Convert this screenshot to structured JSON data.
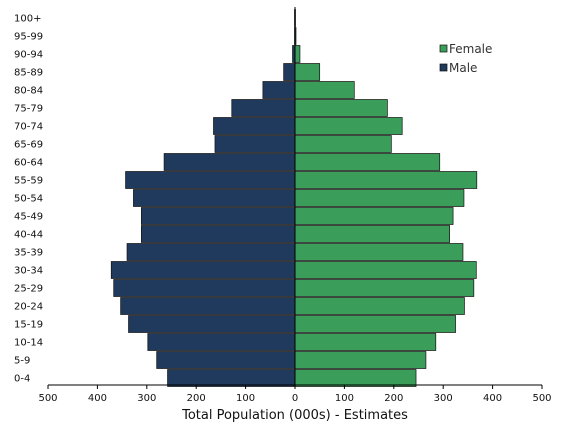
{
  "chart_data": {
    "type": "bar",
    "orientation": "horizontal",
    "layout": "population-pyramid",
    "xlabel": "Total Population (000s) - Estimates",
    "ylabel": "",
    "xlim": [
      -500,
      500
    ],
    "xticks": [
      -500,
      -400,
      -300,
      -200,
      -100,
      0,
      100,
      200,
      300,
      400,
      500
    ],
    "xtick_labels": [
      "500",
      "400",
      "300",
      "200",
      "100",
      "0",
      "100",
      "200",
      "300",
      "400",
      "500"
    ],
    "grid": false,
    "legend_position": "top-right",
    "categories": [
      "0-4",
      "5-9",
      "10-14",
      "15-19",
      "20-24",
      "25-29",
      "30-34",
      "35-39",
      "40-44",
      "45-49",
      "50-54",
      "55-59",
      "60-64",
      "65-69",
      "70-74",
      "75-79",
      "80-84",
      "85-89",
      "90-94",
      "95-99",
      "100+"
    ],
    "series": [
      {
        "name": "Female",
        "color": "#3a9e5a",
        "values": [
          245,
          265,
          285,
          325,
          343,
          362,
          367,
          340,
          313,
          320,
          342,
          368,
          293,
          195,
          217,
          187,
          120,
          50,
          10,
          2,
          1
        ]
      },
      {
        "name": "Male",
        "color": "#1f3a5c",
        "values": [
          258,
          280,
          298,
          337,
          353,
          367,
          372,
          340,
          311,
          311,
          327,
          343,
          265,
          162,
          165,
          128,
          65,
          23,
          5,
          1,
          1
        ]
      }
    ]
  }
}
